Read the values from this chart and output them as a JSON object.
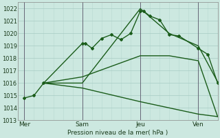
{
  "bg_color": "#cce8e0",
  "grid_color_major": "#a8ccc4",
  "grid_color_minor": "#b8d8d0",
  "line_color": "#1a5c1a",
  "ylabel_text": "Pression niveau de la mer( hPa )",
  "xtick_labels": [
    "Mer",
    "Sam",
    "Jeu",
    "Ven"
  ],
  "xtick_positions": [
    0,
    36,
    72,
    108
  ],
  "xlim": [
    -4,
    120
  ],
  "ylim": [
    1013,
    1022.5
  ],
  "yticks": [
    1013,
    1014,
    1015,
    1016,
    1017,
    1018,
    1019,
    1020,
    1021,
    1022
  ],
  "series": [
    {
      "x": [
        0,
        6,
        12,
        36,
        38,
        42,
        48,
        54,
        60,
        66,
        72,
        74,
        78,
        84,
        90,
        96,
        108,
        114,
        120
      ],
      "y": [
        1014.8,
        1015.0,
        1016.0,
        1019.2,
        1019.2,
        1018.8,
        1019.6,
        1019.9,
        1019.5,
        1020.0,
        1021.8,
        1021.8,
        1021.4,
        1021.1,
        1019.9,
        1019.8,
        1018.8,
        1018.3,
        1016.0
      ],
      "lw": 1.0,
      "marker": "D",
      "ms": 2.0,
      "linestyle": "-"
    },
    {
      "x": [
        12,
        36,
        72,
        90,
        108,
        120
      ],
      "y": [
        1016.0,
        1016.0,
        1022.0,
        1020.0,
        1019.0,
        1016.1
      ],
      "lw": 1.0,
      "marker": null,
      "ms": 0,
      "linestyle": "-"
    },
    {
      "x": [
        12,
        36,
        72,
        90,
        108,
        120
      ],
      "y": [
        1016.0,
        1016.5,
        1018.2,
        1018.2,
        1017.8,
        1013.3
      ],
      "lw": 1.0,
      "marker": null,
      "ms": 0,
      "linestyle": "-"
    },
    {
      "x": [
        12,
        36,
        72,
        90,
        108,
        120
      ],
      "y": [
        1016.0,
        1015.6,
        1014.5,
        1014.0,
        1013.5,
        1013.3
      ],
      "lw": 1.0,
      "marker": null,
      "ms": 0,
      "linestyle": "-"
    }
  ],
  "vlines_x": [
    0,
    36,
    72,
    108
  ],
  "vline_color": "#666677",
  "figsize": [
    3.2,
    2.0
  ],
  "dpi": 100
}
